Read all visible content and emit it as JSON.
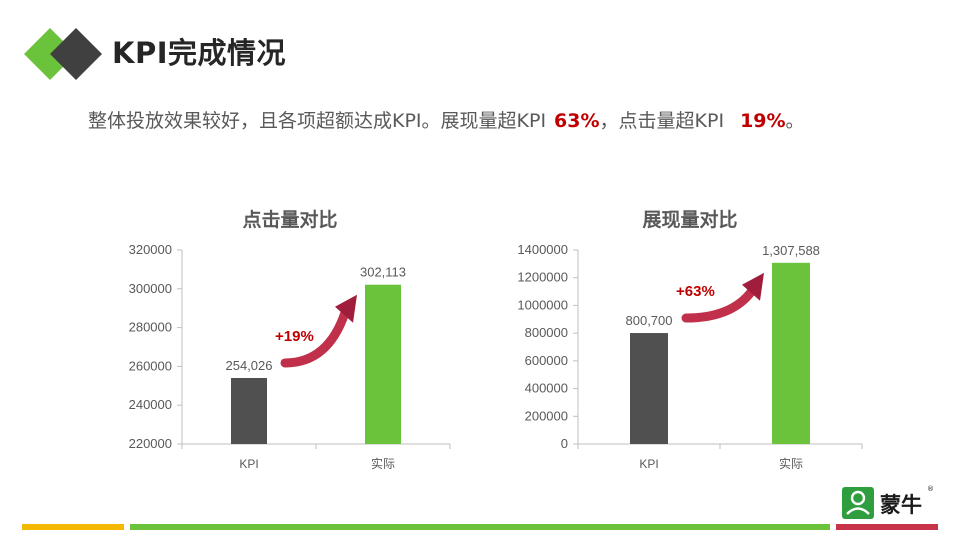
{
  "page": {
    "title": "KPI完成情况",
    "summary": {
      "intro": "整体投放效果较好，且各项超额达成KPI。展现量超KPI",
      "impr_pct": "63%",
      "middle": "，点击量超KPI",
      "click_pct": "19%",
      "end": "。"
    }
  },
  "brand": {
    "name": "蒙牛",
    "reg": "®"
  },
  "colors": {
    "kpi_bar": "#505050",
    "actual_bar": "#6ac33b",
    "accent_red": "#c00000",
    "logo_green": "#6ac33b",
    "logo_dark": "#404040"
  },
  "chart_data": [
    {
      "type": "bar",
      "title": "点击量对比",
      "categories": [
        "KPI",
        "实际"
      ],
      "values": [
        254026,
        302113
      ],
      "value_labels": [
        "254,026",
        "302,113"
      ],
      "ylim": [
        220000,
        320000
      ],
      "yticks": [
        220000,
        240000,
        260000,
        280000,
        300000,
        320000
      ],
      "ytick_labels": [
        "220000",
        "240000",
        "260000",
        "280000",
        "300000",
        "320000"
      ],
      "bar_colors": [
        "#505050",
        "#6ac33b"
      ],
      "annotation": "+19%",
      "grid": false,
      "legend": "none"
    },
    {
      "type": "bar",
      "title": "展现量对比",
      "categories": [
        "KPI",
        "实际"
      ],
      "values": [
        800700,
        1307588
      ],
      "value_labels": [
        "800,700",
        "1,307,588"
      ],
      "ylim": [
        0,
        1400000
      ],
      "yticks": [
        0,
        200000,
        400000,
        600000,
        800000,
        1000000,
        1200000,
        1400000
      ],
      "ytick_labels": [
        "0",
        "200000",
        "400000",
        "600000",
        "800000",
        "1000000",
        "1200000",
        "1400000"
      ],
      "bar_colors": [
        "#505050",
        "#6ac33b"
      ],
      "annotation": "+63%",
      "grid": false,
      "legend": "none"
    }
  ]
}
